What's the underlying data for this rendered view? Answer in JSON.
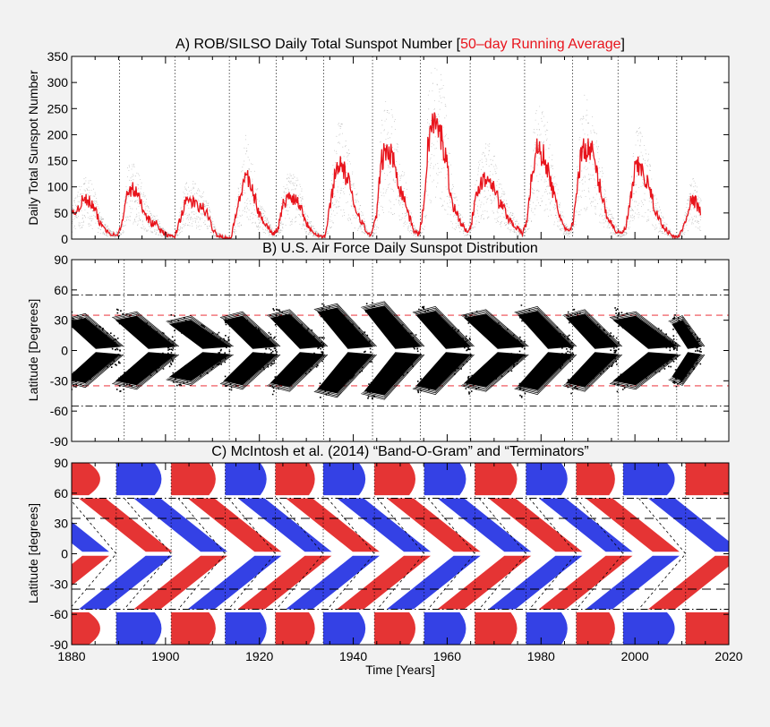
{
  "colors": {
    "running_avg": "#e8141c",
    "positive": "#e01010",
    "negative": "#1020e0",
    "background": "#f2f2f2"
  },
  "chart_data": [
    {
      "type": "line",
      "title_prefix": "A) ROB/SILSO Daily Total Sunspot Number [",
      "title_highlight": "50–day Running Average",
      "title_suffix": "]",
      "ylabel": "Daily Total Sunspot Number",
      "xlim": [
        1880,
        2020
      ],
      "ylim": [
        0,
        350
      ],
      "yticks": [
        0,
        50,
        100,
        150,
        200,
        250,
        300,
        350
      ],
      "cycle_boundaries": [
        1890.2,
        1902.0,
        1913.6,
        1923.6,
        1933.7,
        1944.1,
        1954.3,
        1964.9,
        1976.5,
        1986.7,
        1996.4,
        2008.9
      ],
      "series": [
        {
          "name": "50-day Running Average",
          "x": [
            1880,
            1881,
            1882,
            1883,
            1884,
            1885,
            1886,
            1887,
            1888,
            1889,
            1890,
            1891,
            1892,
            1893,
            1894,
            1895,
            1896,
            1897,
            1898,
            1899,
            1900,
            1901,
            1902,
            1903,
            1904,
            1905,
            1906,
            1907,
            1908,
            1909,
            1910,
            1911,
            1912,
            1913,
            1914,
            1915,
            1916,
            1917,
            1918,
            1919,
            1920,
            1921,
            1922,
            1923,
            1924,
            1925,
            1926,
            1927,
            1928,
            1929,
            1930,
            1931,
            1932,
            1933,
            1934,
            1935,
            1936,
            1937,
            1938,
            1939,
            1940,
            1941,
            1942,
            1943,
            1944,
            1945,
            1946,
            1947,
            1948,
            1949,
            1950,
            1951,
            1952,
            1953,
            1954,
            1955,
            1956,
            1957,
            1958,
            1959,
            1960,
            1961,
            1962,
            1963,
            1964,
            1965,
            1966,
            1967,
            1968,
            1969,
            1970,
            1971,
            1972,
            1973,
            1974,
            1975,
            1976,
            1977,
            1978,
            1979,
            1980,
            1981,
            1982,
            1983,
            1984,
            1985,
            1986,
            1987,
            1988,
            1989,
            1990,
            1991,
            1992,
            1993,
            1994,
            1995,
            1996,
            1997,
            1998,
            1999,
            2000,
            2001,
            2002,
            2003,
            2004,
            2005,
            2006,
            2007,
            2008,
            2009,
            2010,
            2011,
            2012,
            2013,
            2014
          ],
          "values": [
            45,
            55,
            70,
            75,
            70,
            55,
            30,
            22,
            12,
            8,
            10,
            40,
            95,
            95,
            85,
            65,
            45,
            30,
            30,
            15,
            10,
            5,
            5,
            35,
            65,
            75,
            70,
            60,
            60,
            45,
            20,
            8,
            5,
            2,
            2,
            50,
            80,
            130,
            100,
            80,
            45,
            35,
            20,
            10,
            20,
            65,
            80,
            80,
            75,
            60,
            30,
            20,
            10,
            5,
            5,
            60,
            120,
            150,
            130,
            110,
            70,
            50,
            30,
            10,
            10,
            50,
            150,
            170,
            160,
            140,
            95,
            75,
            40,
            15,
            8,
            60,
            190,
            225,
            210,
            190,
            140,
            70,
            50,
            30,
            15,
            25,
            70,
            110,
            115,
            115,
            105,
            70,
            60,
            40,
            30,
            20,
            10,
            35,
            120,
            170,
            165,
            150,
            110,
            75,
            45,
            20,
            12,
            40,
            130,
            180,
            170,
            165,
            120,
            85,
            45,
            30,
            15,
            10,
            20,
            70,
            130,
            140,
            120,
            100,
            65,
            40,
            25,
            15,
            5,
            3,
            15,
            45,
            75,
            70,
            50
          ]
        }
      ]
    },
    {
      "type": "scatter",
      "title": "B) U.S. Air Force Daily Sunspot Distribution",
      "ylabel": "Latitude [Degrees]",
      "xlim": [
        1880,
        2020
      ],
      "ylim": [
        -90,
        90
      ],
      "yticks": [
        90,
        60,
        30,
        0,
        -30,
        -60,
        -90
      ],
      "reference_lines": [
        {
          "latitude": 35,
          "style": "red-dashed"
        },
        {
          "latitude": -35,
          "style": "red-dashed"
        },
        {
          "latitude": 55,
          "style": "dash-dot"
        },
        {
          "latitude": -55,
          "style": "dash-dot"
        }
      ],
      "cycle_boundaries": [
        1891.2,
        1902.0,
        1913.6,
        1923.6,
        1933.7,
        1944.1,
        1954.3,
        1964.9,
        1976.5,
        1986.7,
        1996.4,
        2008.9
      ],
      "butterfly_wings": [
        {
          "start": 1879.0,
          "end": 1890.2,
          "max_latitude": 28
        },
        {
          "start": 1889.5,
          "end": 1902.0,
          "max_latitude": 30
        },
        {
          "start": 1901.0,
          "end": 1913.6,
          "max_latitude": 26
        },
        {
          "start": 1912.5,
          "end": 1923.6,
          "max_latitude": 30
        },
        {
          "start": 1922.5,
          "end": 1933.7,
          "max_latitude": 32
        },
        {
          "start": 1932.5,
          "end": 1944.1,
          "max_latitude": 38
        },
        {
          "start": 1942.5,
          "end": 1954.3,
          "max_latitude": 40
        },
        {
          "start": 1953.5,
          "end": 1964.9,
          "max_latitude": 35
        },
        {
          "start": 1963.8,
          "end": 1976.5,
          "max_latitude": 32
        },
        {
          "start": 1975.2,
          "end": 1986.7,
          "max_latitude": 35
        },
        {
          "start": 1985.5,
          "end": 1996.4,
          "max_latitude": 32
        },
        {
          "start": 1995.5,
          "end": 2008.9,
          "max_latitude": 30
        },
        {
          "start": 2008.0,
          "end": 2014.0,
          "max_latitude": 26
        }
      ]
    },
    {
      "type": "heatmap",
      "title": "C) McIntosh et al. (2014) “Band-O-Gram” and “Terminators”",
      "ylabel": "Latitude [degrees]",
      "xlabel": "Time [Years]",
      "xlim": [
        1880,
        2020
      ],
      "ylim": [
        -90,
        90
      ],
      "xticks": [
        1880,
        1900,
        1920,
        1940,
        1960,
        1980,
        2000,
        2020
      ],
      "yticks": [
        90,
        60,
        30,
        0,
        -30,
        -60,
        -90
      ],
      "reference_lines": [
        {
          "latitude": 35,
          "style": "black-dashed"
        },
        {
          "latitude": -35,
          "style": "black-dashed"
        },
        {
          "latitude": 55,
          "style": "dash-dot"
        },
        {
          "latitude": -55,
          "style": "dash-dot"
        }
      ],
      "terminators": [
        1889.5,
        1901.2,
        1912.7,
        1923.4,
        1933.6,
        1944.5,
        1955.1,
        1965.9,
        1976.8,
        1987.5,
        1997.5,
        2010.8
      ]
    }
  ]
}
